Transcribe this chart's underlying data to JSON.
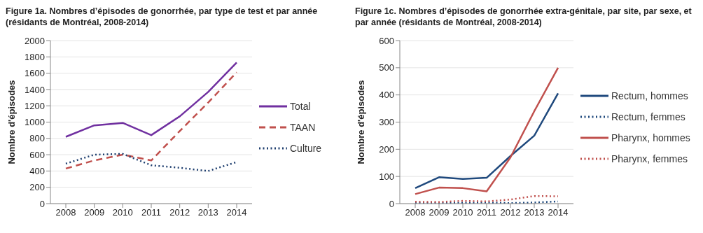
{
  "chart_data": [
    {
      "type": "line",
      "title": "Figure 1a. Nombres d’épisodes de gonorrhée, par type de test et par année (résidants de Montréal, 2008-2014)",
      "ylabel": "Nombre d'épisodes",
      "categories": [
        "2008",
        "2009",
        "2010",
        "2011",
        "2012",
        "2013",
        "2014"
      ],
      "ylim": [
        0,
        2000
      ],
      "yticks": [
        0,
        200,
        400,
        600,
        800,
        1000,
        1200,
        1400,
        1600,
        1800,
        2000
      ],
      "grid": "y",
      "legend": "right",
      "marker": "none",
      "series": [
        {
          "name": "Total",
          "color": "#7030a0",
          "line_style": "solid",
          "values": [
            820,
            960,
            990,
            840,
            1070,
            1370,
            1730
          ]
        },
        {
          "name": "TAAN",
          "color": "#c0504d",
          "line_style": "dashed",
          "values": [
            430,
            530,
            600,
            530,
            890,
            1240,
            1610
          ]
        },
        {
          "name": "Culture",
          "color": "#1f3f6f",
          "line_style": "dotted",
          "values": [
            490,
            600,
            610,
            470,
            440,
            400,
            510
          ]
        }
      ]
    },
    {
      "type": "line",
      "title": "Figure 1c. Nombres d’épisodes de gonorrhée extra-génitale, par site, par sexe, et par année (résidants de Montréal, 2008-2014)",
      "ylabel": "Nombre d'épisodes",
      "categories": [
        "2008",
        "2009",
        "2010",
        "2011",
        "2012",
        "2013",
        "2014"
      ],
      "ylim": [
        0,
        600
      ],
      "yticks": [
        0,
        100,
        200,
        300,
        400,
        500,
        600
      ],
      "grid": "y",
      "legend": "right",
      "marker": "none",
      "series": [
        {
          "name": "Rectum, hommes",
          "color": "#1f497d",
          "line_style": "solid",
          "values": [
            57,
            97,
            91,
            95,
            175,
            250,
            406
          ]
        },
        {
          "name": "Rectum, femmes",
          "color": "#1f497d",
          "line_style": "dotted",
          "values": [
            2,
            2,
            3,
            4,
            2,
            4,
            8
          ]
        },
        {
          "name": "Pharynx, hommes",
          "color": "#c0504d",
          "line_style": "solid",
          "values": [
            35,
            59,
            57,
            45,
            170,
            340,
            500
          ]
        },
        {
          "name": "Pharynx, femmes",
          "color": "#c0504d",
          "line_style": "dotted",
          "values": [
            7,
            6,
            10,
            8,
            15,
            28,
            27
          ]
        }
      ]
    }
  ]
}
